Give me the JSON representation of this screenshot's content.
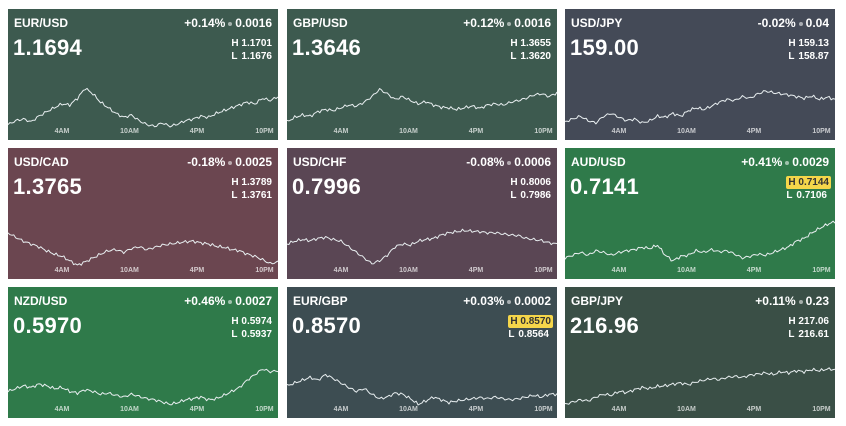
{
  "time_ticks": [
    "4AM",
    "10AM",
    "4PM",
    "10PM"
  ],
  "tiles": [
    {
      "pair": "EUR/USD",
      "change_pct": "+0.14%",
      "change_abs": "0.0016",
      "price": "1.1694",
      "high": "1.1701",
      "low": "1.1676",
      "high_highlight": false,
      "low_highlight": false,
      "color": "#3d5a4f",
      "series": [
        0.15,
        0.22,
        0.25,
        0.2,
        0.3,
        0.38,
        0.45,
        0.52,
        0.5,
        0.62,
        0.8,
        0.7,
        0.55,
        0.45,
        0.35,
        0.28,
        0.32,
        0.22,
        0.15,
        0.12,
        0.18,
        0.12,
        0.16,
        0.22,
        0.25,
        0.3,
        0.28,
        0.35,
        0.4,
        0.45,
        0.5,
        0.55,
        0.52,
        0.62,
        0.58,
        0.65
      ]
    },
    {
      "pair": "GBP/USD",
      "change_pct": "+0.12%",
      "change_abs": "0.0016",
      "price": "1.3646",
      "high": "1.3655",
      "low": "1.3620",
      "high_highlight": false,
      "low_highlight": false,
      "color": "#3d5a4f",
      "series": [
        0.2,
        0.28,
        0.32,
        0.3,
        0.38,
        0.42,
        0.4,
        0.45,
        0.5,
        0.48,
        0.55,
        0.65,
        0.78,
        0.7,
        0.6,
        0.65,
        0.58,
        0.52,
        0.56,
        0.5,
        0.46,
        0.45,
        0.42,
        0.45,
        0.48,
        0.44,
        0.5,
        0.52,
        0.5,
        0.55,
        0.58,
        0.62,
        0.68,
        0.7,
        0.65,
        0.72
      ]
    },
    {
      "pair": "USD/JPY",
      "change_pct": "-0.02%",
      "change_abs": "0.04",
      "price": "159.00",
      "high": "159.13",
      "low": "158.87",
      "high_highlight": false,
      "low_highlight": false,
      "color": "#444a57",
      "series": [
        0.2,
        0.25,
        0.3,
        0.22,
        0.18,
        0.3,
        0.35,
        0.28,
        0.22,
        0.25,
        0.18,
        0.22,
        0.3,
        0.28,
        0.35,
        0.3,
        0.4,
        0.45,
        0.42,
        0.48,
        0.55,
        0.6,
        0.58,
        0.65,
        0.62,
        0.7,
        0.75,
        0.72,
        0.7,
        0.68,
        0.65,
        0.62,
        0.66,
        0.6,
        0.64,
        0.6
      ]
    },
    {
      "pair": "USD/CAD",
      "change_pct": "-0.18%",
      "change_abs": "0.0025",
      "price": "1.3765",
      "high": "1.3789",
      "low": "1.3761",
      "high_highlight": false,
      "low_highlight": false,
      "color": "#6b4650",
      "series": [
        0.7,
        0.62,
        0.55,
        0.5,
        0.45,
        0.38,
        0.32,
        0.28,
        0.2,
        0.12,
        0.18,
        0.25,
        0.32,
        0.38,
        0.4,
        0.35,
        0.42,
        0.45,
        0.4,
        0.44,
        0.48,
        0.5,
        0.52,
        0.54,
        0.55,
        0.52,
        0.5,
        0.46,
        0.44,
        0.4,
        0.38,
        0.32,
        0.28,
        0.22,
        0.15,
        0.18
      ]
    },
    {
      "pair": "USD/CHF",
      "change_pct": "-0.08%",
      "change_abs": "0.0006",
      "price": "0.7996",
      "high": "0.8006",
      "low": "0.7986",
      "high_highlight": false,
      "low_highlight": false,
      "color": "#5a4654",
      "series": [
        0.5,
        0.55,
        0.58,
        0.56,
        0.6,
        0.62,
        0.58,
        0.55,
        0.45,
        0.35,
        0.25,
        0.15,
        0.2,
        0.3,
        0.45,
        0.5,
        0.48,
        0.55,
        0.58,
        0.6,
        0.66,
        0.7,
        0.72,
        0.74,
        0.73,
        0.72,
        0.7,
        0.7,
        0.68,
        0.66,
        0.65,
        0.6,
        0.58,
        0.56,
        0.52,
        0.5
      ]
    },
    {
      "pair": "AUD/USD",
      "change_pct": "+0.41%",
      "change_abs": "0.0029",
      "price": "0.7141",
      "high": "0.7144",
      "low": "0.7106",
      "high_highlight": true,
      "low_highlight": false,
      "color": "#2f7a4a",
      "series": [
        0.25,
        0.3,
        0.35,
        0.3,
        0.38,
        0.35,
        0.3,
        0.35,
        0.38,
        0.4,
        0.44,
        0.42,
        0.48,
        0.3,
        0.2,
        0.28,
        0.3,
        0.38,
        0.35,
        0.4,
        0.36,
        0.38,
        0.32,
        0.25,
        0.28,
        0.32,
        0.3,
        0.35,
        0.4,
        0.45,
        0.55,
        0.6,
        0.7,
        0.78,
        0.85,
        0.9
      ]
    },
    {
      "pair": "NZD/USD",
      "change_pct": "+0.46%",
      "change_abs": "0.0027",
      "price": "0.5970",
      "high": "0.5974",
      "low": "0.5937",
      "high_highlight": false,
      "low_highlight": false,
      "color": "#2f7a4a",
      "series": [
        0.35,
        0.4,
        0.45,
        0.42,
        0.48,
        0.45,
        0.4,
        0.42,
        0.35,
        0.32,
        0.38,
        0.35,
        0.3,
        0.32,
        0.28,
        0.25,
        0.3,
        0.26,
        0.22,
        0.2,
        0.16,
        0.12,
        0.15,
        0.2,
        0.22,
        0.25,
        0.2,
        0.22,
        0.28,
        0.35,
        0.42,
        0.55,
        0.65,
        0.75,
        0.7,
        0.72
      ]
    },
    {
      "pair": "EUR/GBP",
      "change_pct": "+0.03%",
      "change_abs": "0.0002",
      "price": "0.8570",
      "high": "0.8570",
      "low": "0.8564",
      "high_highlight": true,
      "low_highlight": false,
      "color": "#3d4d52",
      "series": [
        0.45,
        0.5,
        0.55,
        0.6,
        0.55,
        0.65,
        0.58,
        0.5,
        0.42,
        0.35,
        0.4,
        0.3,
        0.22,
        0.25,
        0.32,
        0.3,
        0.22,
        0.12,
        0.18,
        0.25,
        0.2,
        0.15,
        0.18,
        0.2,
        0.22,
        0.24,
        0.22,
        0.25,
        0.22,
        0.2,
        0.22,
        0.25,
        0.28,
        0.25,
        0.3,
        0.3
      ]
    },
    {
      "pair": "GBP/JPY",
      "change_pct": "+0.11%",
      "change_abs": "0.23",
      "price": "216.96",
      "high": "217.06",
      "low": "216.61",
      "high_highlight": false,
      "low_highlight": false,
      "color": "#3a4f46",
      "series": [
        0.12,
        0.16,
        0.2,
        0.18,
        0.25,
        0.3,
        0.28,
        0.35,
        0.33,
        0.38,
        0.42,
        0.4,
        0.44,
        0.45,
        0.48,
        0.5,
        0.47,
        0.52,
        0.55,
        0.58,
        0.56,
        0.6,
        0.62,
        0.6,
        0.64,
        0.66,
        0.68,
        0.65,
        0.7,
        0.68,
        0.72,
        0.7,
        0.74,
        0.72,
        0.75,
        0.74
      ]
    }
  ]
}
